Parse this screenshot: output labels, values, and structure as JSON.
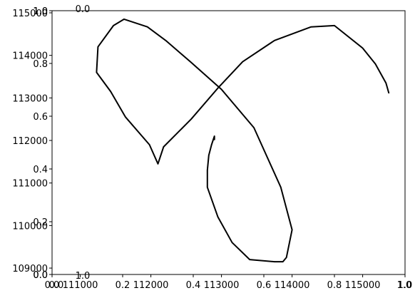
{
  "chart_data": {
    "type": "line",
    "title": "",
    "xlabel": "",
    "ylabel": "",
    "grid": false,
    "main_axes": {
      "xlim": [
        110600,
        115600
      ],
      "ylim": [
        108850,
        115050
      ],
      "xticks": [
        111000,
        112000,
        113000,
        114000,
        115000
      ],
      "xtick_labels": [
        "111000",
        "112000",
        "113000",
        "114000",
        "115000"
      ],
      "yticks": [
        109000,
        110000,
        111000,
        112000,
        113000,
        114000,
        115000
      ],
      "ytick_labels": [
        "109000",
        "110000",
        "111000",
        "112000",
        "113000",
        "114000",
        "115000"
      ]
    },
    "overlay_axes": [
      {
        "xticks": [
          0.0,
          0.2,
          0.4,
          0.6,
          0.8,
          1.0
        ],
        "xtick_labels": [
          "0.0",
          "0.2",
          "0.4",
          "0.6",
          "0.8",
          "1.0"
        ],
        "yticks": [
          0.0,
          0.2,
          0.4,
          0.6,
          0.8,
          1.0
        ],
        "ytick_labels": [
          "0.0",
          "0.2",
          "0.4",
          "0.6",
          "0.8",
          "1.0"
        ]
      },
      {
        "top_label": "0.0",
        "bottom_label": "1.0",
        "left_labels": [
          "1.0",
          "0.0"
        ],
        "bottom_axis_labels": [
          "1.0",
          "0.0"
        ]
      }
    ],
    "series": [
      {
        "color": "#000000",
        "points": [
          [
            112900,
            112020
          ],
          [
            112900,
            112100
          ],
          [
            112880,
            112000
          ],
          [
            112860,
            111900
          ],
          [
            112820,
            111650
          ],
          [
            112800,
            111300
          ],
          [
            112800,
            110900
          ],
          [
            112950,
            110200
          ],
          [
            113150,
            109600
          ],
          [
            113400,
            109200
          ],
          [
            113750,
            109150
          ],
          [
            113870,
            109150
          ],
          [
            113920,
            109250
          ],
          [
            114000,
            109900
          ],
          [
            113840,
            110900
          ],
          [
            113460,
            112300
          ],
          [
            113000,
            113200
          ],
          [
            112560,
            113850
          ],
          [
            112210,
            114350
          ],
          [
            111950,
            114670
          ],
          [
            111620,
            114850
          ],
          [
            111470,
            114700
          ],
          [
            111250,
            114200
          ],
          [
            111230,
            113600
          ],
          [
            111430,
            113150
          ],
          [
            111640,
            112550
          ],
          [
            111980,
            111900
          ],
          [
            112100,
            111450
          ],
          [
            112180,
            111850
          ],
          [
            112570,
            112500
          ],
          [
            112960,
            113250
          ],
          [
            113300,
            113850
          ],
          [
            113750,
            114350
          ],
          [
            114270,
            114670
          ],
          [
            114600,
            114700
          ],
          [
            115000,
            114170
          ],
          [
            115180,
            113800
          ],
          [
            115330,
            113350
          ],
          [
            115370,
            113120
          ]
        ]
      }
    ]
  }
}
